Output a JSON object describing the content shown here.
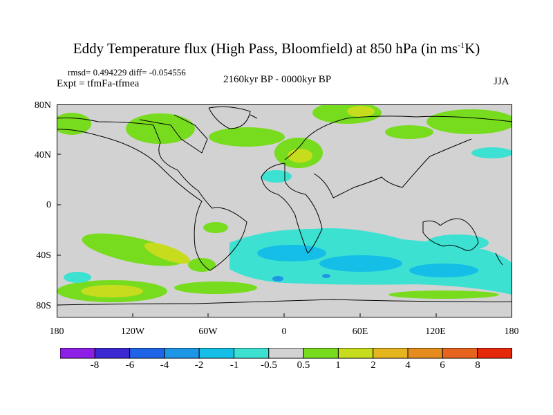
{
  "title": {
    "main": "Eddy Temperature flux (High Pass, Bloomfield) at 850 hPa (in ms",
    "sup": "-1",
    "unit_tail": "K)"
  },
  "stats": "rmsd= 0.494229 diff= -0.054556",
  "expt": "Expt = tfmFa-tfmea",
  "period": "2160kyr BP - 0000kyr BP",
  "season": "JJA",
  "lat_labels": [
    "80N",
    "40N",
    "0",
    "40S",
    "80S"
  ],
  "lon_labels": [
    "180",
    "120W",
    "60W",
    "0",
    "60E",
    "120E",
    "180"
  ],
  "colorbar": {
    "labels": [
      "-8",
      "-6",
      "-4",
      "-2",
      "-1",
      "-0.5",
      "0.5",
      "1",
      "2",
      "4",
      "6",
      "8"
    ],
    "colors": [
      "#8c1ee6",
      "#3c28d2",
      "#1e64e6",
      "#1e96e6",
      "#14bee6",
      "#3ce1d2",
      "#d2d2d2",
      "#78dc1e",
      "#c8dc1e",
      "#e6b41e",
      "#e68c1e",
      "#e6641e",
      "#e6280a"
    ]
  },
  "colors": {
    "land_gray": "#d2d2d2",
    "coast": "#000000"
  }
}
